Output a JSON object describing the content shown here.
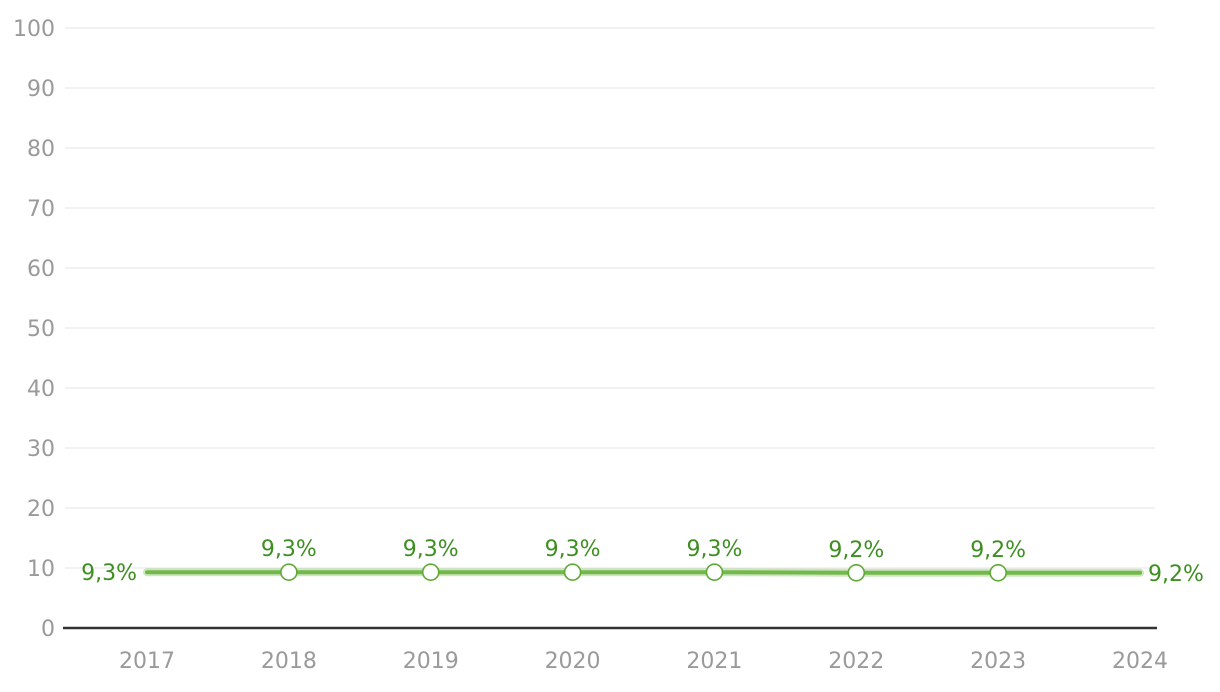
{
  "chart_data": {
    "type": "line",
    "title": "",
    "categories": [
      "2017",
      "2018",
      "2019",
      "2020",
      "2021",
      "2022",
      "2023",
      "2024"
    ],
    "series": [
      {
        "name": "percentage-series",
        "values": [
          9.3,
          9.3,
          9.3,
          9.3,
          9.3,
          9.2,
          9.2,
          9.2
        ],
        "data_labels": [
          "9,3%",
          "9,3%",
          "9,3%",
          "9,3%",
          "9,3%",
          "9,2%",
          "9,2%",
          "9,2%"
        ],
        "label_positions": [
          "left",
          "above",
          "above",
          "above",
          "above",
          "above",
          "above",
          "right"
        ],
        "marker_visible": [
          false,
          true,
          true,
          true,
          true,
          true,
          true,
          false
        ]
      }
    ],
    "xlabel": "",
    "ylabel": "",
    "ylim": [
      0,
      100
    ],
    "ytick_step": 10,
    "ytick_labels": [
      "0",
      "10",
      "20",
      "30",
      "40",
      "50",
      "60",
      "70",
      "80",
      "90",
      "100"
    ],
    "grid": true,
    "legend": "none",
    "colors": {
      "line": "#72b84a",
      "line_halo": "rgba(114,184,74,0.35)",
      "marker_fill": "#ffffff",
      "marker_stroke": "#5fa936",
      "data_label": "#3e8e22",
      "grid_line": "#e6e6e6",
      "axis_line": "#333333",
      "tick_label": "#9a9a9a",
      "background": "#ffffff"
    }
  }
}
